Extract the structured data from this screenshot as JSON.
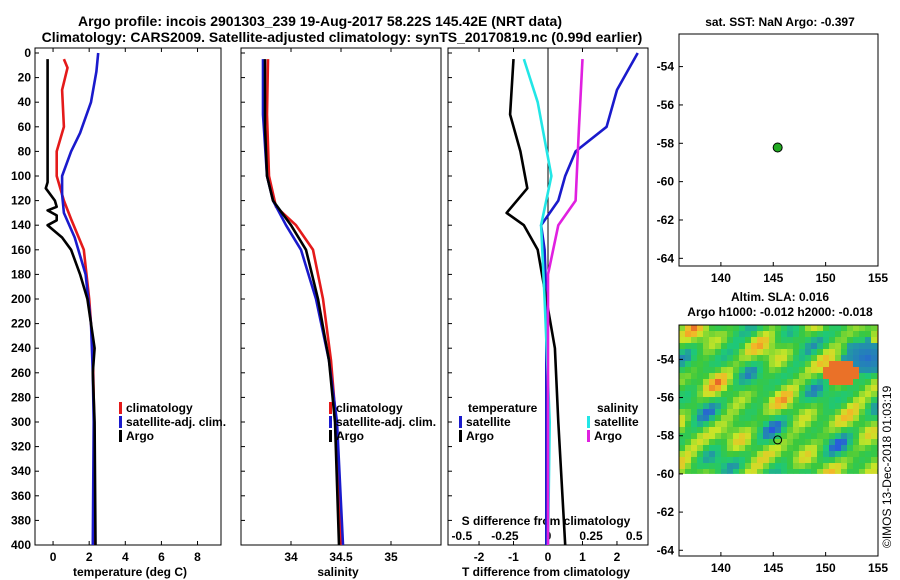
{
  "chart_data": {
    "type": "line",
    "title_line1": "Argo profile: incois 2901303_239 19-Aug-2017 58.22S 145.42E (NRT data)",
    "title_line2": "Climatology: CARS2009. Satellite-adjusted climatology: synTS_20170819.nc (0.99d earlier)",
    "watermark": "©IMOS 13-Dec-2018 01:03:19",
    "colors": {
      "red": "#e41a1a",
      "blue": "#1a1acc",
      "black": "#000000",
      "cyan": "#22e6e6",
      "magenta": "#e020e0",
      "marker": "#22aa22"
    },
    "depth_ticks": [
      0,
      20,
      40,
      60,
      80,
      100,
      120,
      140,
      160,
      180,
      200,
      220,
      240,
      260,
      280,
      300,
      320,
      340,
      360,
      380,
      400
    ],
    "panels": [
      {
        "id": "temperature",
        "xlabel": "temperature (deg C)",
        "xlim": [
          -1,
          9.3
        ],
        "ylim": [
          0,
          400
        ],
        "xticks": [
          0,
          2,
          4,
          6,
          8
        ],
        "legend": {
          "position": "bottom-right",
          "entries": [
            {
              "label": "climatology",
              "color": "#e41a1a"
            },
            {
              "label": "satellite-adj. clim.",
              "color": "#1a1acc"
            },
            {
              "label": "Argo",
              "color": "#000000"
            }
          ]
        },
        "series": [
          {
            "name": "climatology",
            "color": "#e41a1a",
            "points": [
              [
                0.6,
                5
              ],
              [
                0.8,
                12
              ],
              [
                0.5,
                30
              ],
              [
                0.6,
                60
              ],
              [
                0.2,
                80
              ],
              [
                0.2,
                100
              ],
              [
                0.6,
                120
              ],
              [
                1.0,
                135
              ],
              [
                1.7,
                160
              ],
              [
                2.0,
                200
              ],
              [
                2.2,
                240
              ],
              [
                2.25,
                280
              ],
              [
                2.3,
                320
              ],
              [
                2.3,
                400
              ]
            ]
          },
          {
            "name": "satellite-adj. clim.",
            "color": "#1a1acc",
            "points": [
              [
                2.5,
                0
              ],
              [
                2.4,
                15
              ],
              [
                2.1,
                40
              ],
              [
                1.5,
                65
              ],
              [
                1.0,
                80
              ],
              [
                0.5,
                100
              ],
              [
                0.5,
                115
              ],
              [
                0.6,
                130
              ],
              [
                1.2,
                150
              ],
              [
                1.8,
                180
              ],
              [
                2.1,
                220
              ],
              [
                2.2,
                260
              ],
              [
                2.25,
                300
              ],
              [
                2.2,
                400
              ]
            ]
          },
          {
            "name": "Argo",
            "color": "#000000",
            "points": [
              [
                -0.3,
                5
              ],
              [
                -0.3,
                105
              ],
              [
                -0.4,
                110
              ],
              [
                0.1,
                120
              ],
              [
                0.2,
                125
              ],
              [
                -0.3,
                128
              ],
              [
                0.2,
                132
              ],
              [
                0.2,
                136
              ],
              [
                -0.3,
                140
              ],
              [
                0.5,
                150
              ],
              [
                1.0,
                160
              ],
              [
                1.5,
                180
              ],
              [
                1.9,
                200
              ],
              [
                2.1,
                220
              ],
              [
                2.3,
                240
              ],
              [
                2.2,
                260
              ],
              [
                2.3,
                300
              ],
              [
                2.35,
                400
              ]
            ]
          }
        ]
      },
      {
        "id": "salinity",
        "xlabel": "salinity",
        "xlim": [
          33.5,
          35.5
        ],
        "ylim": [
          0,
          400
        ],
        "xticks": [
          34,
          34.5,
          35
        ],
        "legend": {
          "position": "bottom-right",
          "entries": [
            {
              "label": "climatology",
              "color": "#e41a1a"
            },
            {
              "label": "satellite-adj. clim.",
              "color": "#1a1acc"
            },
            {
              "label": "Argo",
              "color": "#000000"
            }
          ]
        },
        "series": [
          {
            "name": "climatology",
            "color": "#e41a1a",
            "points": [
              [
                33.77,
                5
              ],
              [
                33.76,
                50
              ],
              [
                33.78,
                100
              ],
              [
                33.85,
                125
              ],
              [
                34.05,
                140
              ],
              [
                34.22,
                160
              ],
              [
                34.32,
                200
              ],
              [
                34.4,
                250
              ],
              [
                34.45,
                300
              ],
              [
                34.5,
                400
              ]
            ]
          },
          {
            "name": "satellite-adj. clim.",
            "color": "#1a1acc",
            "points": [
              [
                33.72,
                5
              ],
              [
                33.72,
                50
              ],
              [
                33.76,
                100
              ],
              [
                33.82,
                120
              ],
              [
                33.95,
                140
              ],
              [
                34.1,
                160
              ],
              [
                34.25,
                200
              ],
              [
                34.38,
                250
              ],
              [
                34.46,
                300
              ],
              [
                34.52,
                400
              ]
            ]
          },
          {
            "name": "Argo",
            "color": "#000000",
            "points": [
              [
                33.74,
                5
              ],
              [
                33.74,
                60
              ],
              [
                33.76,
                100
              ],
              [
                33.82,
                120
              ],
              [
                34.0,
                140
              ],
              [
                34.15,
                160
              ],
              [
                34.27,
                200
              ],
              [
                34.38,
                250
              ],
              [
                34.44,
                300
              ],
              [
                34.48,
                400
              ]
            ]
          }
        ]
      },
      {
        "id": "difference",
        "xlabel": "T difference from climatology",
        "xlabel_top": "S difference from climatology",
        "xlim": [
          -2.9,
          2.9
        ],
        "ylim": [
          0,
          400
        ],
        "xticks": [
          -2,
          -1,
          0,
          1,
          2
        ],
        "xticklabels": [
          "-2",
          "-1",
          "0",
          "1",
          "2"
        ],
        "top_ticks": [
          -0.5,
          -0.25,
          0,
          0.25,
          0.5
        ],
        "top_ticklabels": [
          "-0.5",
          "-0.25",
          "0",
          "0.25",
          "0.5"
        ],
        "s_scale": 0.2,
        "legend_left": {
          "title": "temperature",
          "entries": [
            {
              "label": "satellite",
              "color": "#1a1acc"
            },
            {
              "label": "Argo",
              "color": "#000000"
            }
          ]
        },
        "legend_right": {
          "title": "salinity",
          "entries": [
            {
              "label": "satellite",
              "color": "#22e6e6"
            },
            {
              "label": "Argo",
              "color": "#e020e0"
            }
          ]
        },
        "series": [
          {
            "name": "temperature satellite",
            "color": "#1a1acc",
            "points": [
              [
                2.6,
                0
              ],
              [
                2.4,
                10
              ],
              [
                2.0,
                30
              ],
              [
                1.7,
                60
              ],
              [
                0.8,
                80
              ],
              [
                0.5,
                100
              ],
              [
                0.3,
                120
              ],
              [
                -0.2,
                140
              ],
              [
                -0.1,
                160
              ],
              [
                -0.05,
                200
              ],
              [
                -0.05,
                400
              ]
            ]
          },
          {
            "name": "temperature Argo",
            "color": "#000000",
            "points": [
              [
                -1.0,
                5
              ],
              [
                -1.1,
                50
              ],
              [
                -0.8,
                80
              ],
              [
                -0.6,
                110
              ],
              [
                -1.2,
                130
              ],
              [
                -0.7,
                140
              ],
              [
                -0.3,
                160
              ],
              [
                0.2,
                240
              ],
              [
                0.3,
                300
              ],
              [
                0.5,
                400
              ]
            ]
          },
          {
            "name": "salinity satellite",
            "color": "#22e6e6",
            "points": [
              [
                -0.7,
                5
              ],
              [
                -0.3,
                40
              ],
              [
                0.1,
                100
              ],
              [
                -0.2,
                140
              ],
              [
                -0.1,
                200
              ],
              [
                0.05,
                300
              ],
              [
                0.0,
                400
              ]
            ]
          },
          {
            "name": "salinity Argo",
            "color": "#e020e0",
            "points": [
              [
                1.0,
                5
              ],
              [
                0.9,
                60
              ],
              [
                0.8,
                120
              ],
              [
                0.3,
                140
              ],
              [
                0.0,
                180
              ],
              [
                0.0,
                400
              ]
            ]
          }
        ]
      }
    ],
    "maps": [
      {
        "id": "sst-map",
        "title": "sat. SST: NaN Argo: -0.397",
        "xlim": [
          136,
          155
        ],
        "ylim": [
          -64.4,
          -52.3
        ],
        "xticks": [
          140,
          145,
          150,
          155
        ],
        "yticks": [
          -54,
          -56,
          -58,
          -60,
          -62,
          -64
        ],
        "argo_position": [
          145.42,
          -58.22
        ]
      },
      {
        "id": "sla-map",
        "title_line1": "Altim. SLA: 0.016",
        "title_line2": "Argo h1000: -0.012 h2000: -0.018",
        "xlim": [
          136,
          155
        ],
        "ylim": [
          -64.3,
          -52.2
        ],
        "xticks": [
          140,
          145,
          150,
          155
        ],
        "yticks": [
          -54,
          -56,
          -58,
          -60,
          -62,
          -64
        ],
        "colored_area_bottom": -60,
        "argo_position": [
          145.42,
          -58.22
        ]
      }
    ]
  }
}
